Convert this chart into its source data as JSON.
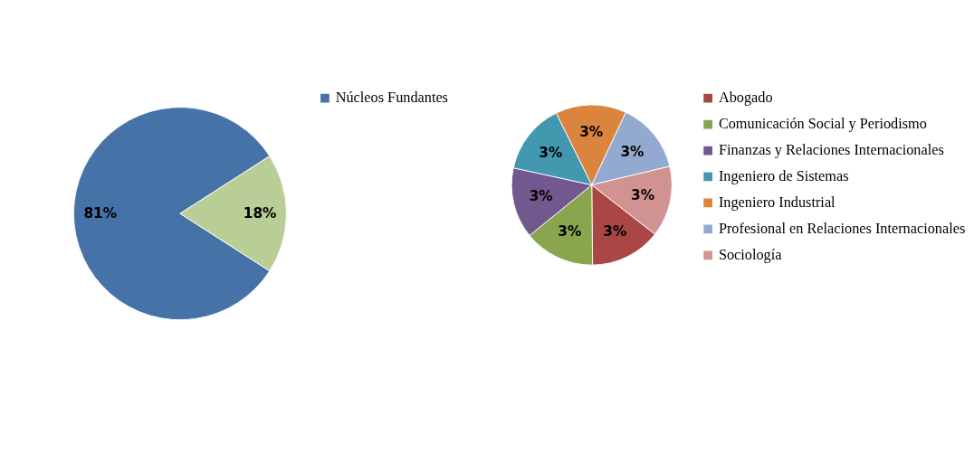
{
  "chart_data": [
    {
      "type": "pie",
      "categories": [
        "Núcleos Fundantes",
        null
      ],
      "values": [
        81,
        18
      ],
      "colors": [
        "#4572a7",
        "#b9cd96"
      ],
      "value_labels": [
        "81%",
        "18%"
      ],
      "legend": "right"
    },
    {
      "type": "pie",
      "categories": [
        "Abogado",
        "Comunicación Social y Periodismo",
        "Finanzas y Relaciones Internacionales",
        "Ingeniero de Sistemas",
        "Ingeniero Industrial",
        "Profesional en Relaciones Internacionales",
        "Sociología"
      ],
      "values": [
        3,
        3,
        3,
        3,
        3,
        3,
        3
      ],
      "colors": [
        "#aa4643",
        "#89a54e",
        "#71588f",
        "#4198af",
        "#db843d",
        "#93a9cf",
        "#d19392"
      ],
      "value_labels": [
        "3%",
        "3%",
        "3%",
        "3%",
        "3%",
        "3%",
        "3%"
      ],
      "legend": "right"
    }
  ]
}
